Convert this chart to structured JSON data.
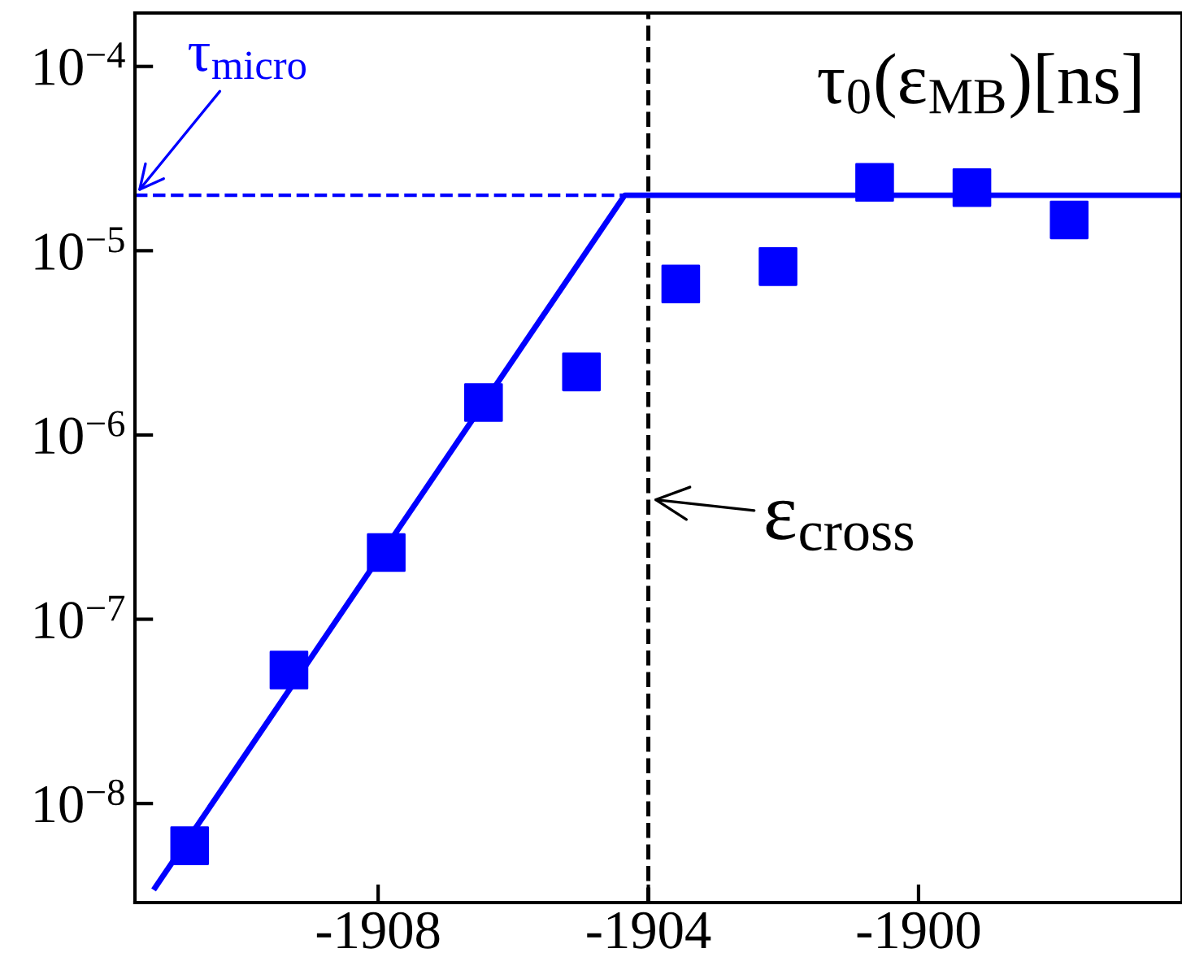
{
  "chart_data": {
    "type": "scatter",
    "title": "τ$_{0}$(ε$_{MB}$)[ns]",
    "log": "y",
    "marker": "square",
    "grid": false,
    "legend": false,
    "xlim": [
      -1911.6,
      -1896.1
    ],
    "xticks": [
      -1908,
      -1904,
      -1900
    ],
    "ylim": [
      2.9e-09,
      0.000195
    ],
    "yticks": [
      {
        "value": 1e-08,
        "label": "10$^{−8}$"
      },
      {
        "value": 1e-07,
        "label": "10$^{−7}$"
      },
      {
        "value": 1e-06,
        "label": "10$^{−6}$"
      },
      {
        "value": 1e-05,
        "label": "10$^{−5}$"
      },
      {
        "value": 0.0001,
        "label": "10$^{−4}$"
      }
    ],
    "series": [
      {
        "color": "#0000ff",
        "x": [
          -1910.79,
          -1909.32,
          -1907.88,
          -1906.44,
          -1904.99,
          -1903.52,
          -1902.08,
          -1900.65,
          -1899.21,
          -1897.77
        ],
        "values": [
          5.9e-09,
          5.3e-08,
          2.3e-07,
          1.5e-06,
          2.2e-06,
          6.6e-06,
          8.2e-06,
          2.35e-05,
          2.2e-05,
          1.47e-05
        ]
      },
      {
        "type": "line",
        "color": "#0000ff",
        "marker": "none",
        "line_style": "solid",
        "x": [
          -1911.3,
          -1904.35,
          -1896.1
        ],
        "values": [
          3.5e-09,
          2e-05,
          2e-05
        ]
      }
    ],
    "ref_lines": [
      {
        "axis": "y",
        "value": 2e-05,
        "label": "τ$_{micro}$",
        "color": "#0000ff",
        "line_style": "dashed"
      },
      {
        "axis": "x",
        "value": -1904.0,
        "label": "ε$_{cross}$",
        "color": "#000000",
        "line_style": "dashed"
      }
    ]
  }
}
